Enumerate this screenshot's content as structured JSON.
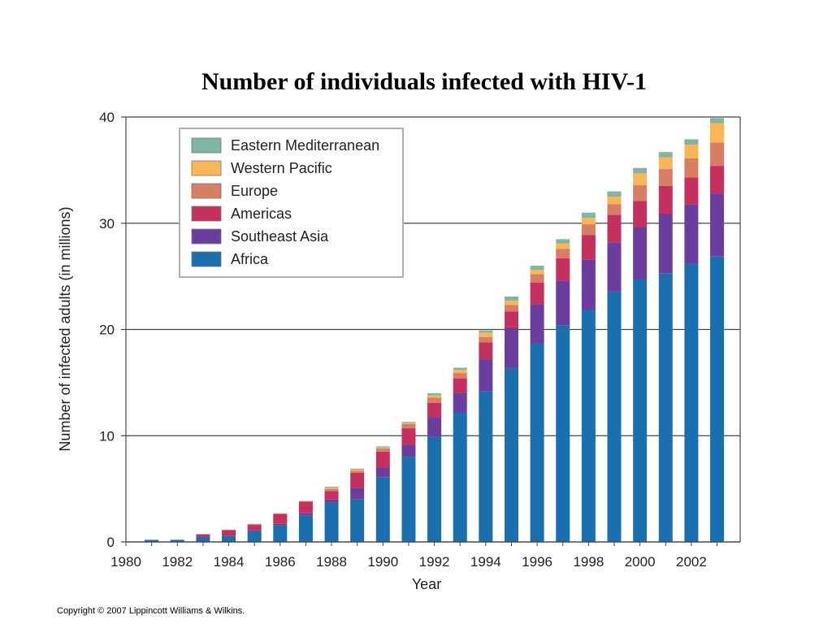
{
  "title": "Number of individuals infected with HIV-1",
  "copyright": "Copyright © 2007 Lippincott Williams & Wilkins.",
  "chart_data": {
    "type": "bar",
    "stacked": true,
    "xlabel": "Year",
    "ylabel": "Number of infected adults (in millions)",
    "ylim": [
      0,
      40
    ],
    "yticks": [
      0,
      10,
      20,
      30,
      40
    ],
    "xtick_labels": [
      "1980",
      "1982",
      "1984",
      "1986",
      "1988",
      "1990",
      "1992",
      "1994",
      "1996",
      "1998",
      "2000",
      "2002"
    ],
    "categories": [
      1981,
      1982,
      1983,
      1984,
      1985,
      1986,
      1987,
      1988,
      1989,
      1990,
      1991,
      1992,
      1993,
      1994,
      1995,
      1996,
      1997,
      1998,
      1999,
      2000,
      2001,
      2002,
      2003
    ],
    "grid": true,
    "legend_position": "top-left",
    "series": [
      {
        "name": "Africa",
        "color": "#1a6faf",
        "values": [
          0.2,
          0.2,
          0.5,
          0.6,
          1.0,
          1.6,
          2.5,
          3.7,
          4.0,
          6.1,
          8.0,
          9.9,
          12.2,
          14.2,
          16.4,
          18.7,
          20.4,
          21.8,
          23.6,
          24.7,
          25.3,
          26.2,
          26.9
        ]
      },
      {
        "name": "Southeast Asia",
        "color": "#6a3d9e",
        "values": [
          0.0,
          0.0,
          0.0,
          0.0,
          0.1,
          0.1,
          0.2,
          0.3,
          1.1,
          0.9,
          1.1,
          1.8,
          1.8,
          3.0,
          3.8,
          3.7,
          4.2,
          4.8,
          4.6,
          4.9,
          5.6,
          5.6,
          5.9
        ]
      },
      {
        "name": "Americas",
        "color": "#c5305f",
        "values": [
          0.0,
          0.0,
          0.2,
          0.5,
          0.5,
          0.9,
          1.1,
          0.8,
          1.4,
          1.5,
          1.6,
          1.4,
          1.4,
          1.6,
          1.5,
          2.0,
          2.1,
          2.3,
          2.6,
          2.5,
          2.6,
          2.5,
          2.6
        ]
      },
      {
        "name": "Europe",
        "color": "#d77e65",
        "values": [
          0.0,
          0.0,
          0.05,
          0.05,
          0.1,
          0.1,
          0.05,
          0.2,
          0.2,
          0.3,
          0.4,
          0.5,
          0.5,
          0.5,
          0.6,
          0.8,
          0.9,
          1.0,
          1.0,
          1.5,
          1.6,
          1.8,
          2.2
        ]
      },
      {
        "name": "Western Pacific",
        "color": "#f9b556",
        "values": [
          0.0,
          0.0,
          0.0,
          0.0,
          0.0,
          0.0,
          0.0,
          0.1,
          0.1,
          0.1,
          0.1,
          0.2,
          0.3,
          0.4,
          0.4,
          0.4,
          0.5,
          0.6,
          0.7,
          1.1,
          1.1,
          1.3,
          1.8
        ]
      },
      {
        "name": "Eastern Mediterranean",
        "color": "#7fb5a3",
        "values": [
          0.0,
          0.0,
          0.0,
          0.0,
          0.0,
          0.0,
          0.0,
          0.1,
          0.1,
          0.1,
          0.1,
          0.2,
          0.2,
          0.2,
          0.4,
          0.4,
          0.4,
          0.5,
          0.5,
          0.5,
          0.5,
          0.5,
          0.5
        ]
      }
    ]
  }
}
